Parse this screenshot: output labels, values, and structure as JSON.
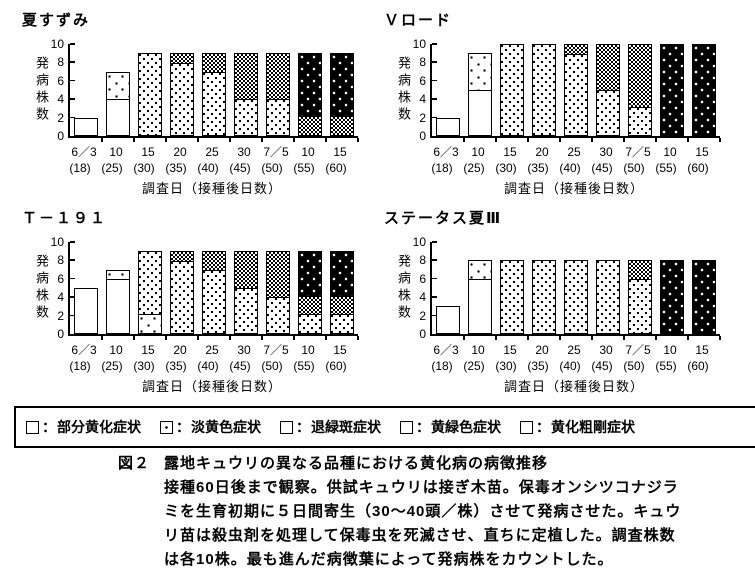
{
  "legend": {
    "separator": "：",
    "items": [
      {
        "label": "部分黄化症状",
        "pattern": "plain"
      },
      {
        "label": "淡黄色症状",
        "pattern": "sparse-dots"
      },
      {
        "label": "退緑斑症状",
        "pattern": "dense-dots"
      },
      {
        "label": "黄緑色症状",
        "pattern": "checker"
      },
      {
        "label": "黄化粗剛症状",
        "pattern": "black-dots"
      }
    ]
  },
  "caption": {
    "figure_label": "図２",
    "lines": [
      "露地キュウリの異なる品種における黄化病の病徴推移",
      "接種60日後まで観察。供試キュウリは接ぎ木苗。保毒オンシツコナジラ",
      "ミを生育初期に５日間寄生（30～40頭／株）させて発病させた。キュウ",
      "リ苗は殺虫剤を処理して保毒虫を死滅させ、直ちに定植した。調査株数",
      "は各10株。最も進んだ病徴葉によって発病株をカウントした。"
    ]
  },
  "chart_data": [
    {
      "type": "bar",
      "title": "夏すずみ",
      "xlabel": "調査日（接種後日数）",
      "ylabel": "発病株数",
      "ylim": [
        0,
        10
      ],
      "yticks": [
        0,
        2,
        4,
        6,
        8,
        10
      ],
      "grid": false,
      "stacked": true,
      "categories": [
        "6／3",
        "10",
        "15",
        "20",
        "25",
        "30",
        "7／5",
        "10",
        "15"
      ],
      "categories_sub": [
        "(18)",
        "(25)",
        "(30)",
        "(35)",
        "(40)",
        "(45)",
        "(50)",
        "(55)",
        "(60)"
      ],
      "series": [
        {
          "name": "部分黄化症状",
          "pattern": "plain",
          "values": [
            2,
            4,
            0,
            0,
            0,
            0,
            0,
            0,
            0
          ]
        },
        {
          "name": "淡黄色症状",
          "pattern": "sparse-dots",
          "values": [
            0,
            3,
            0,
            0,
            0,
            0,
            0,
            0,
            0
          ]
        },
        {
          "name": "退緑斑症状",
          "pattern": "dense-dots",
          "values": [
            0,
            0,
            9,
            8,
            7,
            4,
            4,
            0,
            0
          ]
        },
        {
          "name": "黄緑色症状",
          "pattern": "checker",
          "values": [
            0,
            0,
            0,
            1,
            2,
            5,
            5,
            2,
            2
          ]
        },
        {
          "name": "黄化粗剛症状",
          "pattern": "black-dots",
          "values": [
            0,
            0,
            0,
            0,
            0,
            0,
            0,
            7,
            7
          ]
        }
      ]
    },
    {
      "type": "bar",
      "title": "Ｖロード",
      "xlabel": "調査日（接種後日数）",
      "ylabel": "発病株数",
      "ylim": [
        0,
        10
      ],
      "yticks": [
        0,
        2,
        4,
        6,
        8,
        10
      ],
      "grid": false,
      "stacked": true,
      "categories": [
        "6／3",
        "10",
        "15",
        "20",
        "25",
        "30",
        "7／5",
        "10",
        "15"
      ],
      "categories_sub": [
        "(18)",
        "(25)",
        "(30)",
        "(35)",
        "(40)",
        "(45)",
        "(50)",
        "(55)",
        "(60)"
      ],
      "series": [
        {
          "name": "部分黄化症状",
          "pattern": "plain",
          "values": [
            2,
            5,
            0,
            0,
            0,
            0,
            0,
            0,
            0
          ]
        },
        {
          "name": "淡黄色症状",
          "pattern": "sparse-dots",
          "values": [
            0,
            4,
            0,
            0,
            0,
            0,
            0,
            0,
            0
          ]
        },
        {
          "name": "退緑斑症状",
          "pattern": "dense-dots",
          "values": [
            0,
            0,
            10,
            10,
            9,
            5,
            3,
            0,
            0
          ]
        },
        {
          "name": "黄緑色症状",
          "pattern": "checker",
          "values": [
            0,
            0,
            0,
            0,
            1,
            5,
            7,
            0,
            0
          ]
        },
        {
          "name": "黄化粗剛症状",
          "pattern": "black-dots",
          "values": [
            0,
            0,
            0,
            0,
            0,
            0,
            0,
            10,
            10
          ]
        }
      ]
    },
    {
      "type": "bar",
      "title": "Ｔ－１９１",
      "xlabel": "調査日（接種後日数）",
      "ylabel": "発病株数",
      "ylim": [
        0,
        10
      ],
      "yticks": [
        0,
        2,
        4,
        6,
        8,
        10
      ],
      "grid": false,
      "stacked": true,
      "categories": [
        "6／3",
        "10",
        "15",
        "20",
        "25",
        "30",
        "7／5",
        "10",
        "15"
      ],
      "categories_sub": [
        "(18)",
        "(25)",
        "(30)",
        "(35)",
        "(40)",
        "(45)",
        "(50)",
        "(55)",
        "(60)"
      ],
      "series": [
        {
          "name": "部分黄化症状",
          "pattern": "plain",
          "values": [
            5,
            6,
            0,
            0,
            0,
            0,
            0,
            0,
            0
          ]
        },
        {
          "name": "淡黄色症状",
          "pattern": "sparse-dots",
          "values": [
            0,
            1,
            2,
            0,
            0,
            0,
            0,
            0,
            0
          ]
        },
        {
          "name": "退緑斑症状",
          "pattern": "dense-dots",
          "values": [
            0,
            0,
            7,
            8,
            7,
            5,
            4,
            2,
            2
          ]
        },
        {
          "name": "黄緑色症状",
          "pattern": "checker",
          "values": [
            0,
            0,
            0,
            1,
            2,
            4,
            5,
            2,
            2
          ]
        },
        {
          "name": "黄化粗剛症状",
          "pattern": "black-dots",
          "values": [
            0,
            0,
            0,
            0,
            0,
            0,
            0,
            5,
            5
          ]
        }
      ]
    },
    {
      "type": "bar",
      "title": "ステータス夏Ⅲ",
      "xlabel": "調査日（接種後日数）",
      "ylabel": "発病株数",
      "ylim": [
        0,
        10
      ],
      "yticks": [
        0,
        2,
        4,
        6,
        8,
        10
      ],
      "grid": false,
      "stacked": true,
      "categories": [
        "6／3",
        "10",
        "15",
        "20",
        "25",
        "30",
        "7／5",
        "10",
        "15"
      ],
      "categories_sub": [
        "(18)",
        "(25)",
        "(30)",
        "(35)",
        "(40)",
        "(45)",
        "(50)",
        "(55)",
        "(60)"
      ],
      "series": [
        {
          "name": "部分黄化症状",
          "pattern": "plain",
          "values": [
            3,
            6,
            0,
            0,
            0,
            0,
            0,
            0,
            0
          ]
        },
        {
          "name": "淡黄色症状",
          "pattern": "sparse-dots",
          "values": [
            0,
            2,
            0,
            0,
            0,
            0,
            0,
            0,
            0
          ]
        },
        {
          "name": "退緑斑症状",
          "pattern": "dense-dots",
          "values": [
            0,
            0,
            8,
            8,
            8,
            8,
            6,
            0,
            0
          ]
        },
        {
          "name": "黄緑色症状",
          "pattern": "checker",
          "values": [
            0,
            0,
            0,
            0,
            0,
            0,
            2,
            0,
            0
          ]
        },
        {
          "name": "黄化粗剛症状",
          "pattern": "black-dots",
          "values": [
            0,
            0,
            0,
            0,
            0,
            0,
            0,
            8,
            8
          ]
        }
      ]
    }
  ]
}
